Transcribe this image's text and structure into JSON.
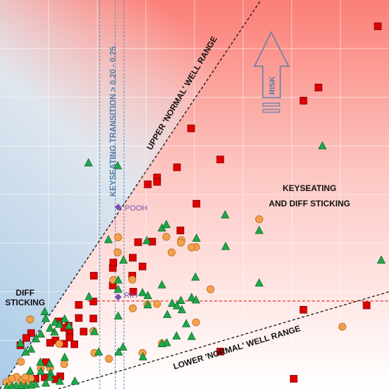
{
  "chart_data": {
    "type": "scatter",
    "title": "",
    "xlabel": "",
    "ylabel": "",
    "xlim": [
      0,
      8
    ],
    "ylim": [
      0,
      8
    ],
    "grid": true,
    "colors": {
      "square": "#e00000",
      "circle": "#f5a04a",
      "triangle": "#1fa84a",
      "diamond": "#7a4fb0",
      "dashed_red": "#e03030",
      "band_blue": "#5a8cb8",
      "risk_arrow": "#5a7fa8"
    },
    "annotations": {
      "upper_range": "UPPER 'NORMAL' WELL RANGE",
      "lower_range": "LOWER 'NORMAL' WELL RANGE",
      "keyseating_band": "KEYSEATING TRANSITION > 0.20 - 0.25",
      "keyseating_line1": "KEYSEATING",
      "keyseating_line2": "AND DIFF STICKING",
      "diff_line1": "DIFF",
      "diff_line2": "STICKING",
      "risk": "RISK",
      "pooh": "POOH",
      "rih": "RIH"
    },
    "reference_lines": {
      "upper_normal": [
        [
          0,
          0
        ],
        [
          5.5,
          8.2
        ]
      ],
      "lower_normal": [
        [
          1.2,
          0
        ],
        [
          8,
          2.0
        ]
      ],
      "horizontal_dashed_y": 1.81,
      "keyseating_transition_x": [
        2.05,
        2.55
      ]
    },
    "markers": {
      "pooh": [
        2.43,
        3.74
      ],
      "rih": [
        2.43,
        1.89
      ]
    },
    "series": [
      {
        "marker": "square",
        "points": [
          [
            7.77,
            7.46
          ],
          [
            6.55,
            6.2
          ],
          [
            6.24,
            5.93
          ],
          [
            3.93,
            5.36
          ],
          [
            4.53,
            4.72
          ],
          [
            3.64,
            4.56
          ],
          [
            3.23,
            4.35
          ],
          [
            3.23,
            4.26
          ],
          [
            3.04,
            4.21
          ],
          [
            4.04,
            3.81
          ],
          [
            3.71,
            3.26
          ],
          [
            2.84,
            3.02
          ],
          [
            3.13,
            3.03
          ],
          [
            2.73,
            2.7
          ],
          [
            2.32,
            2.49
          ],
          [
            2.33,
            2.6
          ],
          [
            2.93,
            2.52
          ],
          [
            2.32,
            2.13
          ],
          [
            2.72,
            2.33
          ],
          [
            1.93,
            2.33
          ],
          [
            2.74,
            2.0
          ],
          [
            1.92,
            1.8
          ],
          [
            1.62,
            1.73
          ],
          [
            1.72,
            1.18
          ],
          [
            1.62,
            1.46
          ],
          [
            1.43,
            1.17
          ],
          [
            1.41,
            1.3
          ],
          [
            1.92,
            1.45
          ],
          [
            1.21,
            1.39
          ],
          [
            1.32,
            1.26
          ],
          [
            1.43,
            1.06
          ],
          [
            1.14,
            1.0
          ],
          [
            1.03,
            0.95
          ],
          [
            1.53,
            0.92
          ],
          [
            1.32,
            0.93
          ],
          [
            0.64,
            1.15
          ],
          [
            0.54,
            1.05
          ],
          [
            0.42,
            0.9
          ],
          [
            0.94,
            0.55
          ],
          [
            0.92,
            0.24
          ],
          [
            1.24,
            0.26
          ],
          [
            1.14,
            0.2
          ],
          [
            4.53,
            0.77
          ],
          [
            6.04,
            0.21
          ],
          [
            6.24,
            1.63
          ],
          [
            7.54,
            1.72
          ],
          [
            0.73,
            0.21
          ]
        ]
      },
      {
        "marker": "circle",
        "points": [
          [
            5.33,
            3.49
          ],
          [
            3.42,
            3.13
          ],
          [
            3.73,
            3.06
          ],
          [
            3.72,
            3.01
          ],
          [
            2.43,
            3.12
          ],
          [
            2.42,
            2.81
          ],
          [
            4.03,
            2.92
          ],
          [
            3.53,
            2.81
          ],
          [
            3.94,
            2.91
          ],
          [
            2.72,
            2.25
          ],
          [
            2.33,
            2.24
          ],
          [
            4.33,
            2.05
          ],
          [
            2.73,
            1.66
          ],
          [
            3.23,
            1.75
          ],
          [
            3.03,
            1.74
          ],
          [
            4.03,
            1.37
          ],
          [
            0.62,
            1.43
          ],
          [
            1.92,
            1.19
          ],
          [
            7.04,
            1.28
          ],
          [
            3.33,
            0.94
          ],
          [
            1.22,
            0.93
          ],
          [
            1.94,
            0.74
          ],
          [
            2.24,
            0.62
          ],
          [
            1.32,
            0.51
          ],
          [
            2.93,
            0.74
          ],
          [
            0.43,
            0.56
          ],
          [
            0.84,
            0.42
          ],
          [
            1.03,
            0.43
          ],
          [
            0.54,
            0.13
          ],
          [
            0.63,
            0.22
          ],
          [
            0.44,
            0.16
          ],
          [
            0.47,
            0.19
          ],
          [
            0.34,
            0.25
          ],
          [
            0.24,
            0.21
          ],
          [
            0.13,
            0.14
          ],
          [
            0.21,
            0.08
          ],
          [
            0.52,
            0.24
          ]
        ]
      },
      {
        "marker": "triangle",
        "points": [
          [
            6.63,
            5.0
          ],
          [
            1.82,
            4.65
          ],
          [
            2.42,
            4.59
          ],
          [
            2.23,
            3.07
          ],
          [
            3.33,
            3.31
          ],
          [
            3.42,
            3.38
          ],
          [
            4.63,
            3.58
          ],
          [
            5.33,
            3.26
          ],
          [
            4.04,
            3.1
          ],
          [
            4.64,
            2.93
          ],
          [
            2.54,
            2.65
          ],
          [
            3.02,
            3.05
          ],
          [
            4.02,
            2.3
          ],
          [
            3.33,
            2.14
          ],
          [
            5.33,
            2.18
          ],
          [
            2.43,
            2.24
          ],
          [
            2.43,
            2.05
          ],
          [
            3.04,
            1.92
          ],
          [
            2.93,
            1.98
          ],
          [
            3.04,
            1.73
          ],
          [
            3.72,
            1.82
          ],
          [
            3.94,
            1.88
          ],
          [
            3.74,
            1.63
          ],
          [
            4.03,
            1.83
          ],
          [
            3.54,
            1.76
          ],
          [
            3.64,
            1.71
          ],
          [
            3.44,
            1.53
          ],
          [
            1.83,
            1.9
          ],
          [
            0.92,
            1.59
          ],
          [
            2.43,
            1.5
          ],
          [
            1.94,
            1.18
          ],
          [
            3.83,
            1.34
          ],
          [
            3.63,
            1.09
          ],
          [
            3.94,
            1.08
          ],
          [
            3.43,
            0.95
          ],
          [
            3.33,
            0.93
          ],
          [
            2.44,
            0.76
          ],
          [
            2.03,
            0.76
          ],
          [
            1.33,
            1.44
          ],
          [
            1.42,
            1.3
          ],
          [
            1.12,
            1.17
          ],
          [
            1.13,
            1.37
          ],
          [
            1.22,
            1.33
          ],
          [
            1.03,
            1.25
          ],
          [
            0.94,
            1.45
          ],
          [
            0.84,
            1.13
          ],
          [
            0.74,
            1.03
          ],
          [
            0.42,
            0.94
          ],
          [
            0.64,
            0.82
          ],
          [
            0.53,
            0.76
          ],
          [
            2.53,
            0.86
          ],
          [
            2.94,
            0.66
          ],
          [
            1.33,
            0.65
          ],
          [
            1.02,
            0.52
          ],
          [
            0.83,
            0.55
          ],
          [
            0.84,
            0.36
          ],
          [
            1.04,
            0.33
          ],
          [
            1.03,
            0.24
          ],
          [
            1.23,
            0.16
          ],
          [
            1.54,
            0.16
          ],
          [
            0.94,
            0.12
          ],
          [
            0.73,
            0.1
          ],
          [
            0.64,
            0.08
          ],
          [
            0.53,
            0.05
          ],
          [
            0.43,
            0.07
          ],
          [
            0.33,
            0.07
          ],
          [
            0.24,
            0.05
          ],
          [
            0.14,
            0.04
          ],
          [
            7.84,
            2.65
          ],
          [
            0.62,
            0.37
          ]
        ]
      }
    ]
  }
}
